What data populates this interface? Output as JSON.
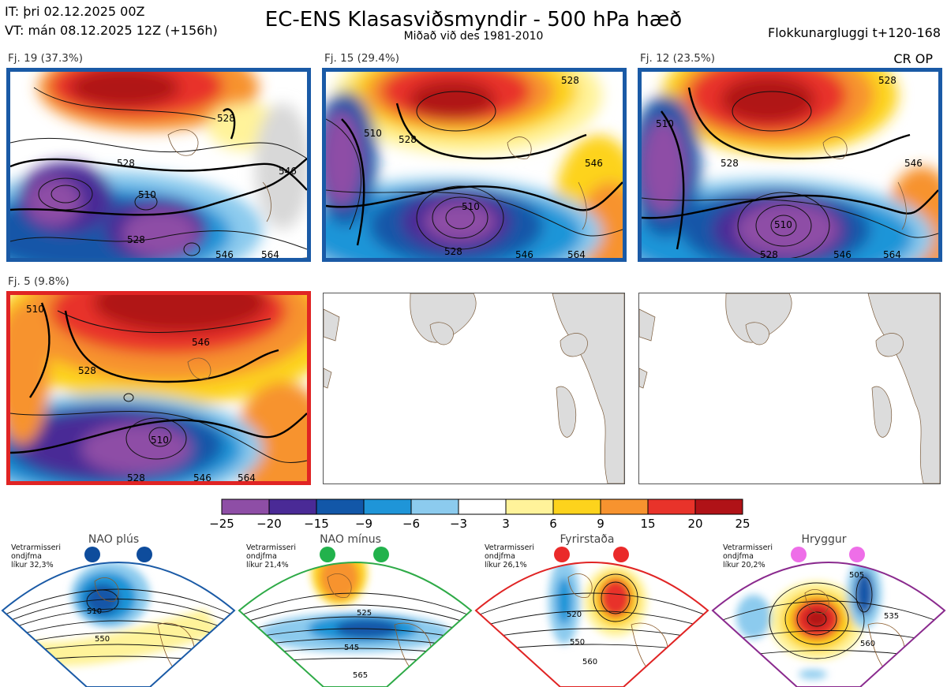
{
  "header": {
    "init_time": "IT: þri 02.12.2025 00Z",
    "valid_time": "VT: mán 08.12.2025 12Z  (+156h)",
    "title": "EC-ENS Klasasviðsmyndir - 500 hPa hæð",
    "subtitle": "Miðað við des 1981-2010",
    "window": "Flokkunargluggi t+120-168"
  },
  "op_label": "CR OP",
  "clusters": [
    {
      "label": "Fj. 19 (37.3%)",
      "frame_color": "#1a5aa6",
      "contours": [
        "528",
        "510",
        "528",
        "546",
        "528",
        "546",
        "564"
      ]
    },
    {
      "label": "Fj. 15 (29.4%)",
      "frame_color": "#1a5aa6",
      "contours": [
        "510",
        "528",
        "510",
        "528",
        "546",
        "564",
        "546",
        "528"
      ]
    },
    {
      "label": "Fj. 12 (23.5%)",
      "frame_color": "#1a5aa6",
      "contours": [
        "510",
        "528",
        "510",
        "528",
        "546",
        "564",
        "546",
        "528"
      ]
    },
    {
      "label": "Fj. 5 (9.8%)",
      "frame_color": "#e02424",
      "contours": [
        "510",
        "528",
        "546",
        "510",
        "528",
        "546",
        "564"
      ]
    }
  ],
  "colorbar": {
    "colors": [
      "#8e4ea6",
      "#4a2a96",
      "#1257a8",
      "#1f95d8",
      "#8ccbee",
      "#ffffff",
      "#fff39a",
      "#fdd31c",
      "#f7932f",
      "#e8332a",
      "#b01217"
    ],
    "ticks": [
      "−25",
      "−20",
      "−15",
      "−9",
      "−6",
      "−3",
      "3",
      "6",
      "9",
      "15",
      "20",
      "25"
    ]
  },
  "regimes": [
    {
      "name": "NAO plús",
      "note": [
        "Vetrarmisseri",
        "ondjfma",
        "líkur 32,3%"
      ],
      "color": "#1a5aa6",
      "dot_color": "#0e4c9c",
      "labels": [
        "510",
        "550"
      ]
    },
    {
      "name": "NAO mínus",
      "note": [
        "Vetrarmisseri",
        "ondjfma",
        "líkur 21,4%"
      ],
      "color": "#2eaa47",
      "dot_color": "#22b24c",
      "labels": [
        "525",
        "545",
        "565"
      ]
    },
    {
      "name": "Fyrirstaða",
      "note": [
        "Vetrarmisseri",
        "ondjfma",
        "líkur 26,1%"
      ],
      "color": "#e02424",
      "dot_color": "#ea2a2a",
      "labels": [
        "520",
        "550",
        "560"
      ]
    },
    {
      "name": "Hryggur",
      "note": [
        "Vetrarmisseri",
        "ondjfma",
        "líkur 20,2%"
      ],
      "color": "#8a2a8e",
      "dot_color": "#ee6ee8",
      "labels": [
        "505",
        "535",
        "560"
      ]
    }
  ]
}
